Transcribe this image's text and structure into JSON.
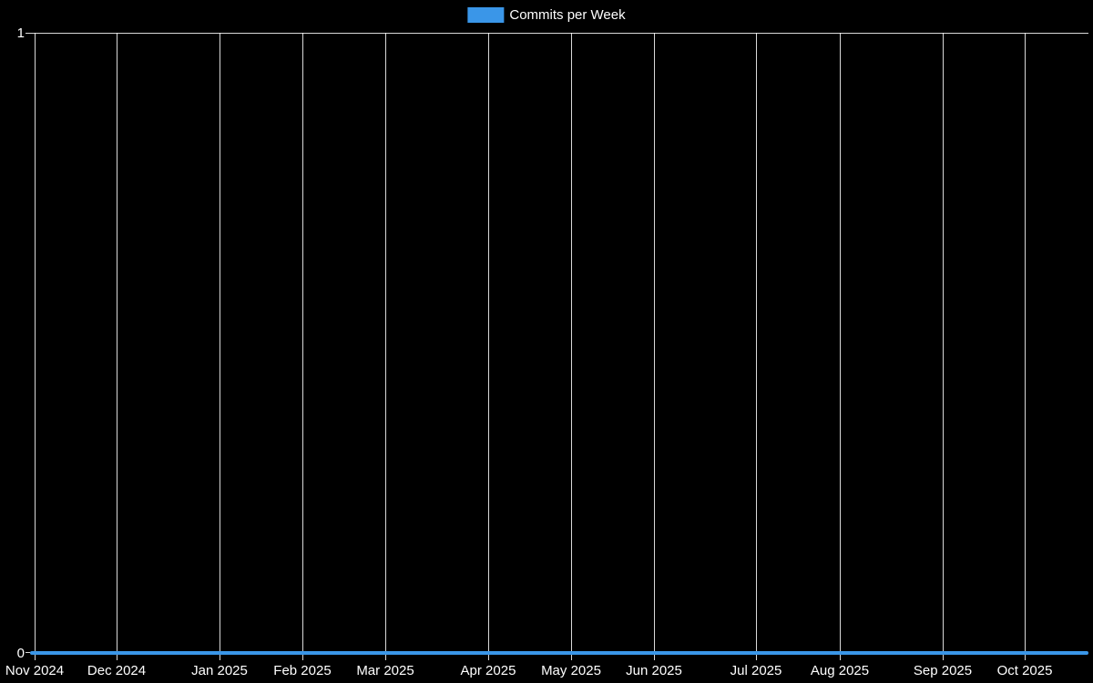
{
  "legend": {
    "items": [
      {
        "label": "Commits per Week",
        "color": "#3a96e8"
      }
    ]
  },
  "y_axis": {
    "max_label": "1",
    "min_label": "0"
  },
  "colors": {
    "background": "#000000",
    "gridline": "rgba(255,255,255,0.85)",
    "text": "#ffffff",
    "line": "#3a96e8"
  },
  "chart_data": {
    "type": "line",
    "title": "Commits per Week",
    "categories": [
      "Nov 2024",
      "Dec 2024",
      "Jan 2025",
      "Feb 2025",
      "Mar 2025",
      "Apr 2025",
      "May 2025",
      "Jun 2025",
      "Jul 2025",
      "Aug 2025",
      "Sep 2025",
      "Oct 2025"
    ],
    "series": [
      {
        "name": "Commits per Week",
        "color": "#3a96e8",
        "values": [
          0,
          0,
          0,
          0,
          0,
          0,
          0,
          0,
          0,
          0,
          0,
          0
        ]
      }
    ],
    "xlabel": "",
    "ylabel": "",
    "ylim": [
      0,
      1
    ],
    "y_ticks": [
      0,
      1
    ],
    "legend_position": "top-center",
    "background": "#000000",
    "grid": "vertical gridlines at each monthly tick; horizontal gridline only at y=1 (top border)",
    "note": "Flat line at y=0: zero commits for every week from Nov 2024 through Oct 2025."
  }
}
